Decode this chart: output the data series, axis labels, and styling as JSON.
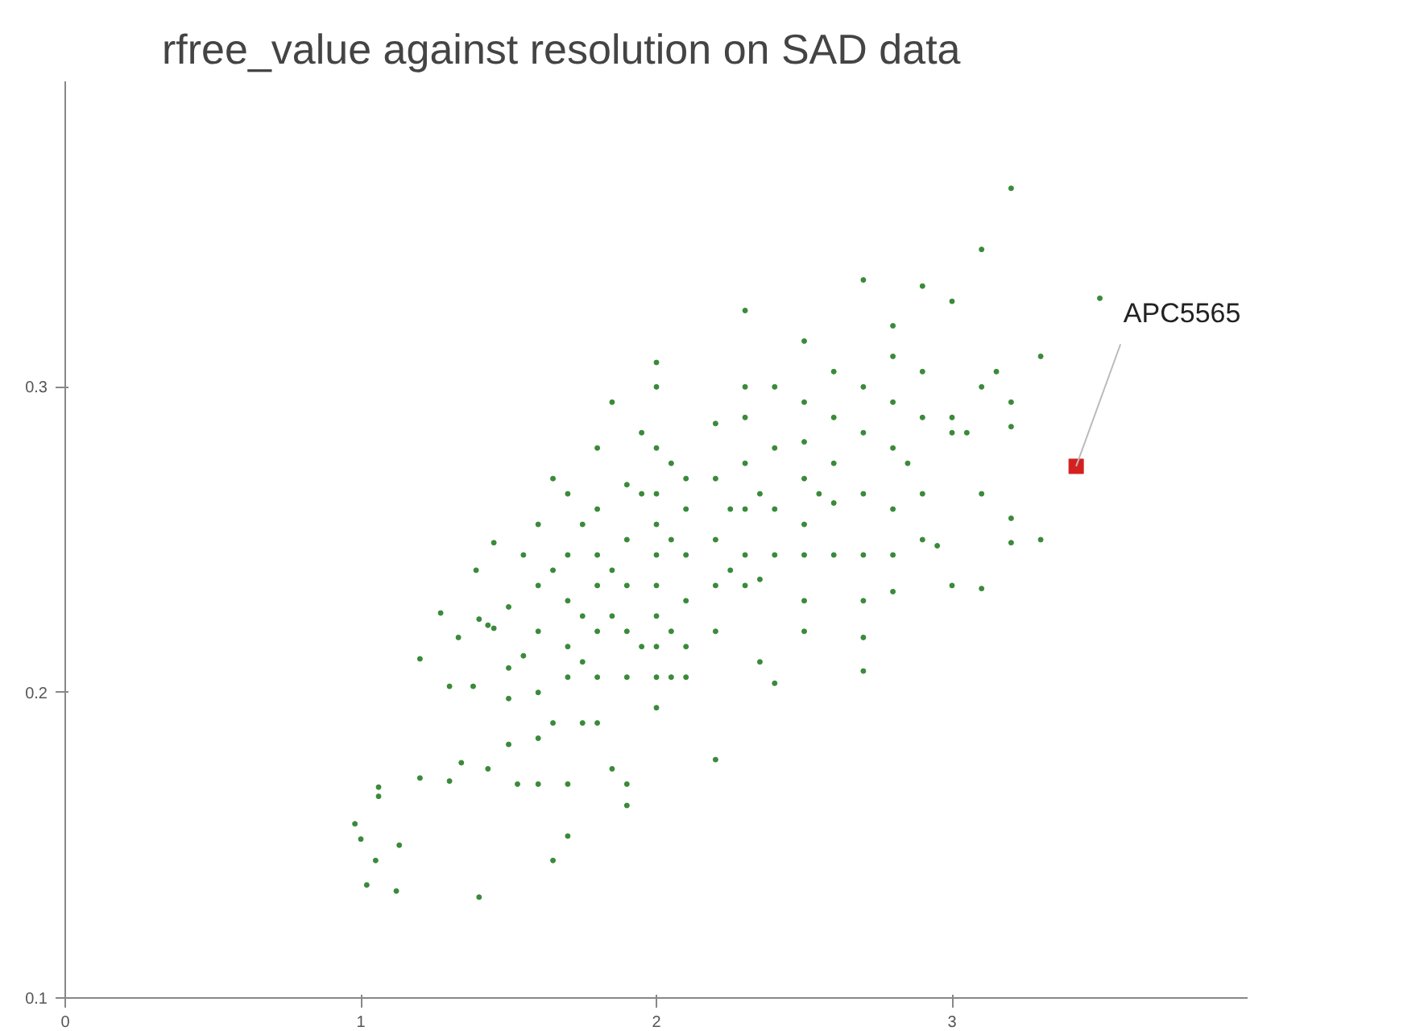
{
  "chart_data": {
    "type": "scatter",
    "title": "rfree_value against resolution on SAD data",
    "xlim": [
      0,
      4
    ],
    "xticks": [
      0,
      1,
      2,
      3
    ],
    "ylim": [
      0.1,
      0.4
    ],
    "yticks": [
      0.1,
      0.2,
      0.3
    ],
    "grid": false,
    "marker": "circle",
    "annotations": [
      {
        "text": "APC5565",
        "x": 3.42,
        "y": 0.274
      }
    ],
    "series": [
      {
        "color": "#3a8a3a",
        "x": [
          0.98,
          1.0,
          1.02,
          1.05,
          1.06,
          1.06,
          1.12,
          1.13,
          1.2,
          1.2,
          1.27,
          1.3,
          1.3,
          1.34,
          1.33,
          1.39,
          1.38,
          1.4,
          1.4,
          1.43,
          1.45,
          1.45,
          1.43,
          1.5,
          1.5,
          1.5,
          1.5,
          1.53,
          1.55,
          1.55,
          1.6,
          1.6,
          1.6,
          1.6,
          1.6,
          1.6,
          1.65,
          1.65,
          1.65,
          1.65,
          1.7,
          1.7,
          1.7,
          1.7,
          1.7,
          1.7,
          1.7,
          1.75,
          1.75,
          1.75,
          1.75,
          1.8,
          1.8,
          1.8,
          1.8,
          1.8,
          1.8,
          1.8,
          1.85,
          1.85,
          1.85,
          1.85,
          1.9,
          1.9,
          1.9,
          1.9,
          1.9,
          1.9,
          1.9,
          1.95,
          1.95,
          1.95,
          2.0,
          2.0,
          2.0,
          2.0,
          2.0,
          2.0,
          2.0,
          2.0,
          2.0,
          2.0,
          2.0,
          2.05,
          2.05,
          2.05,
          2.05,
          2.1,
          2.1,
          2.1,
          2.1,
          2.1,
          2.1,
          2.2,
          2.2,
          2.2,
          2.2,
          2.2,
          2.2,
          2.25,
          2.25,
          2.3,
          2.3,
          2.3,
          2.3,
          2.3,
          2.3,
          2.3,
          2.35,
          2.35,
          2.35,
          2.4,
          2.4,
          2.4,
          2.4,
          2.4,
          2.5,
          2.5,
          2.5,
          2.5,
          2.5,
          2.5,
          2.5,
          2.5,
          2.55,
          2.6,
          2.6,
          2.6,
          2.6,
          2.6,
          2.7,
          2.7,
          2.7,
          2.7,
          2.7,
          2.7,
          2.7,
          2.7,
          2.8,
          2.8,
          2.8,
          2.8,
          2.8,
          2.8,
          2.8,
          2.85,
          2.9,
          2.9,
          2.9,
          2.9,
          2.9,
          2.95,
          3.0,
          3.0,
          3.0,
          3.0,
          3.05,
          3.1,
          3.1,
          3.1,
          3.1,
          3.15,
          3.2,
          3.2,
          3.2,
          3.2,
          3.2,
          3.3,
          3.3,
          3.5
        ],
        "values": [
          0.157,
          0.152,
          0.137,
          0.145,
          0.169,
          0.166,
          0.135,
          0.15,
          0.172,
          0.211,
          0.226,
          0.202,
          0.171,
          0.177,
          0.218,
          0.24,
          0.202,
          0.133,
          0.224,
          0.222,
          0.249,
          0.221,
          0.175,
          0.228,
          0.208,
          0.198,
          0.183,
          0.17,
          0.245,
          0.212,
          0.255,
          0.235,
          0.22,
          0.2,
          0.185,
          0.17,
          0.27,
          0.24,
          0.19,
          0.145,
          0.265,
          0.245,
          0.23,
          0.215,
          0.205,
          0.17,
          0.153,
          0.255,
          0.225,
          0.21,
          0.19,
          0.28,
          0.26,
          0.245,
          0.235,
          0.22,
          0.205,
          0.19,
          0.295,
          0.24,
          0.225,
          0.175,
          0.268,
          0.25,
          0.235,
          0.22,
          0.205,
          0.17,
          0.163,
          0.285,
          0.265,
          0.215,
          0.308,
          0.3,
          0.28,
          0.265,
          0.255,
          0.245,
          0.235,
          0.225,
          0.215,
          0.205,
          0.195,
          0.275,
          0.25,
          0.22,
          0.205,
          0.27,
          0.26,
          0.245,
          0.23,
          0.215,
          0.205,
          0.288,
          0.27,
          0.25,
          0.235,
          0.22,
          0.178,
          0.26,
          0.24,
          0.325,
          0.3,
          0.29,
          0.275,
          0.26,
          0.245,
          0.235,
          0.265,
          0.237,
          0.21,
          0.3,
          0.28,
          0.26,
          0.245,
          0.203,
          0.315,
          0.295,
          0.282,
          0.27,
          0.255,
          0.245,
          0.23,
          0.22,
          0.265,
          0.305,
          0.29,
          0.275,
          0.262,
          0.245,
          0.335,
          0.3,
          0.285,
          0.265,
          0.245,
          0.23,
          0.218,
          0.207,
          0.32,
          0.31,
          0.295,
          0.28,
          0.26,
          0.245,
          0.233,
          0.275,
          0.333,
          0.305,
          0.29,
          0.265,
          0.25,
          0.248,
          0.328,
          0.29,
          0.285,
          0.235,
          0.285,
          0.345,
          0.3,
          0.265,
          0.234,
          0.305,
          0.365,
          0.295,
          0.287,
          0.257,
          0.249,
          0.31,
          0.25,
          0.329
        ]
      },
      {
        "color": "#d42020",
        "marker": "square",
        "x": [
          3.42
        ],
        "values": [
          0.274
        ]
      }
    ]
  }
}
